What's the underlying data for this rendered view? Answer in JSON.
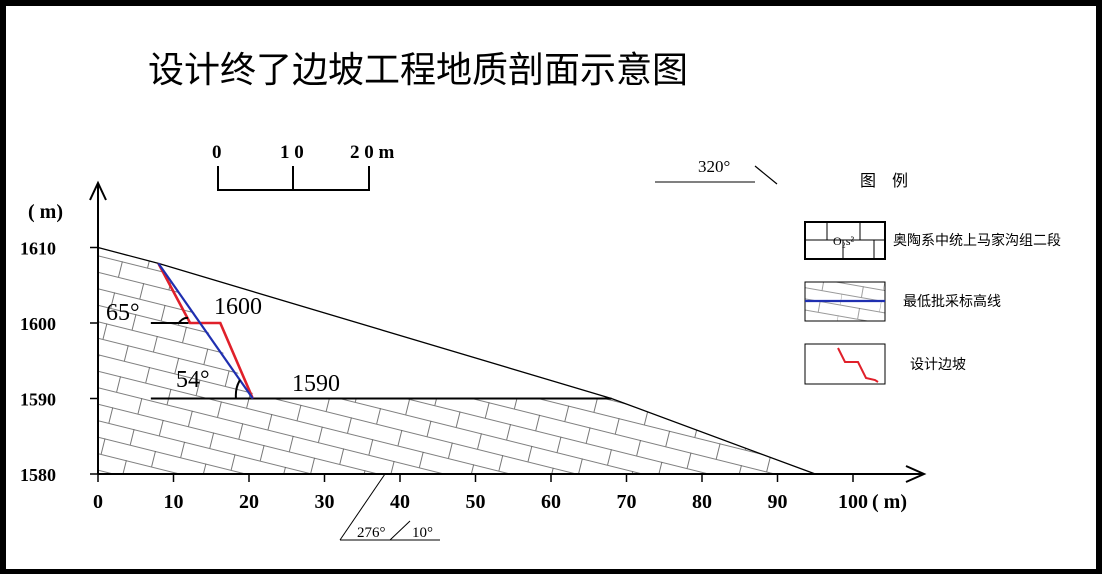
{
  "title": "设计终了边坡工程地质剖面示意图",
  "scale_bar": {
    "labels": [
      "0",
      "1 0",
      "2 0 m"
    ]
  },
  "direction_top": "320°",
  "direction_bottom": {
    "left": "276°",
    "right": "10°"
  },
  "elevation_labels": {
    "upper": "1600",
    "lower": "1590"
  },
  "angle_labels": {
    "upper": "65°",
    "lower": "54°"
  },
  "chart_data": {
    "type": "diagram",
    "x_axis": {
      "unit_label": "( m)",
      "min": 0,
      "max": 100,
      "ticks": [
        0,
        10,
        20,
        30,
        40,
        50,
        60,
        70,
        80,
        90,
        100
      ]
    },
    "y_axis": {
      "unit_label": "( m)",
      "min": 1580,
      "max": 1610,
      "ticks": [
        1580,
        1590,
        1600,
        1610
      ]
    },
    "terrain_outline": [
      [
        0,
        1610
      ],
      [
        8.0,
        1607.9
      ],
      [
        21,
        1590
      ],
      [
        68,
        1590
      ],
      [
        95,
        1580
      ],
      [
        0,
        1580
      ]
    ],
    "design_slope": [
      [
        8.0,
        1607.9
      ],
      [
        12.2,
        1600
      ],
      [
        16.2,
        1600
      ],
      [
        20.5,
        1590
      ],
      [
        68,
        1590
      ]
    ],
    "cutoff_line": [
      [
        8.0,
        1607.9
      ],
      [
        20.5,
        1590
      ]
    ],
    "benches": [
      {
        "label": "1600",
        "elevation": 1600,
        "angle": "65°"
      },
      {
        "label": "1590",
        "elevation": 1590,
        "angle": "54°"
      }
    ],
    "colors": {
      "design_slope": "#e0202a",
      "cutoff_line": "#1f2fb0",
      "outline": "#000000"
    }
  },
  "legend": {
    "title": "图　例",
    "items": [
      {
        "label": "奥陶系中统上马家沟组二段",
        "symbol": "O₂s²"
      },
      {
        "label": "最低批采标高线",
        "symbol": ""
      },
      {
        "label": "设计边坡",
        "symbol": ""
      }
    ]
  }
}
